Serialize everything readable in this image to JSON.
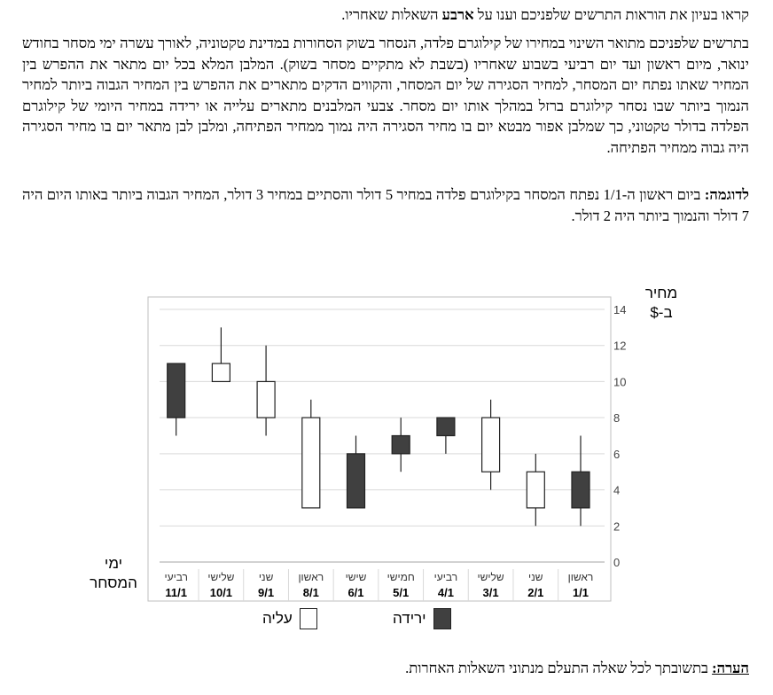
{
  "text": {
    "intro_before": "קראו בעיון את הוראות התרשים שלפניכם וענו על ",
    "intro_bold": "ארבע",
    "intro_after": " השאלות שאחריו.",
    "paragraph": "בתרשים שלפניכם מתואר השינוי במחירו של קילוגרם פלדה, הנסחר בשוק הסחורות במדינת טקטוניה, לאורך עשרה ימי מסחר בחודש ינואר, מיום ראשון ועד יום רביעי בשבוע שאחריו (בשבת לא מתקיים מסחר בשוק). המלבן המלא בכל יום מתאר את ההפרש בין המחיר שאתו נפתח יום המסחר, למחיר הסגירה של יום המסחר, והקווים הדקים מתארים את ההפרש בין המחיר הגבוה ביותר למחיר הנמוך ביותר שבו נסחר קילוגרם ברזל במהלך אותו יום מסחר. צבעי המלבנים מתארים עלייה או ירידה במחיר היומי של קילוגרם הפלדה בדולר טקטוני, כך שמלבן אפור מבטא יום בו מחיר הסגירה היה נמוך ממחיר הפתיחה, ומלבן לבן מתאר יום בו מחיר הסגירה היה גבוה ממחיר הפתיחה.",
    "example_label": "לדוגמה:",
    "example_text": " ביום ראשון ה-1/1 נפתח המסחר בקילוגרם פלדה במחיר 5 דולר והסתיים במחיר 3 דולר, המחיר הגבוה ביותר באותו היום היה 7 דולר והנמוך ביותר היה 2 דולר.",
    "note_label": "הערה:",
    "note_text": " בתשובתך לכל שאלה התעלם מנתוני השאלות האחרות."
  },
  "chart_data": {
    "type": "candlestick",
    "ylabel": "מחיר ב-$",
    "xlabel": "ימי המסחר",
    "ylim": [
      0,
      14
    ],
    "yticks": [
      0,
      2,
      4,
      6,
      8,
      10,
      12,
      14
    ],
    "grid": true,
    "days": [
      {
        "day": "ראשון",
        "date": "1/1",
        "open": 5,
        "close": 3,
        "high": 7,
        "low": 2
      },
      {
        "day": "שני",
        "date": "2/1",
        "open": 3,
        "close": 5,
        "high": 6,
        "low": 2
      },
      {
        "day": "שלישי",
        "date": "3/1",
        "open": 5,
        "close": 8,
        "high": 9,
        "low": 4
      },
      {
        "day": "רביעי",
        "date": "4/1",
        "open": 8,
        "close": 7,
        "high": 8,
        "low": 6
      },
      {
        "day": "חמישי",
        "date": "5/1",
        "open": 7,
        "close": 6,
        "high": 8,
        "low": 5
      },
      {
        "day": "שישי",
        "date": "6/1",
        "open": 6,
        "close": 3,
        "high": 7,
        "low": 3
      },
      {
        "day": "ראשון",
        "date": "8/1",
        "open": 3,
        "close": 8,
        "high": 9,
        "low": 3
      },
      {
        "day": "שני",
        "date": "9/1",
        "open": 8,
        "close": 10,
        "high": 12,
        "low": 7
      },
      {
        "day": "שלישי",
        "date": "10/1",
        "open": 10,
        "close": 11,
        "high": 13,
        "low": 10
      },
      {
        "day": "רביעי",
        "date": "11/1",
        "open": 11,
        "close": 8,
        "high": 11,
        "low": 7
      }
    ],
    "legend": {
      "up": "עליה",
      "down": "ירידה"
    },
    "colors": {
      "up": "#ffffff",
      "down": "#404040",
      "grid": "#d9d9d9",
      "outline": "#222222"
    }
  }
}
